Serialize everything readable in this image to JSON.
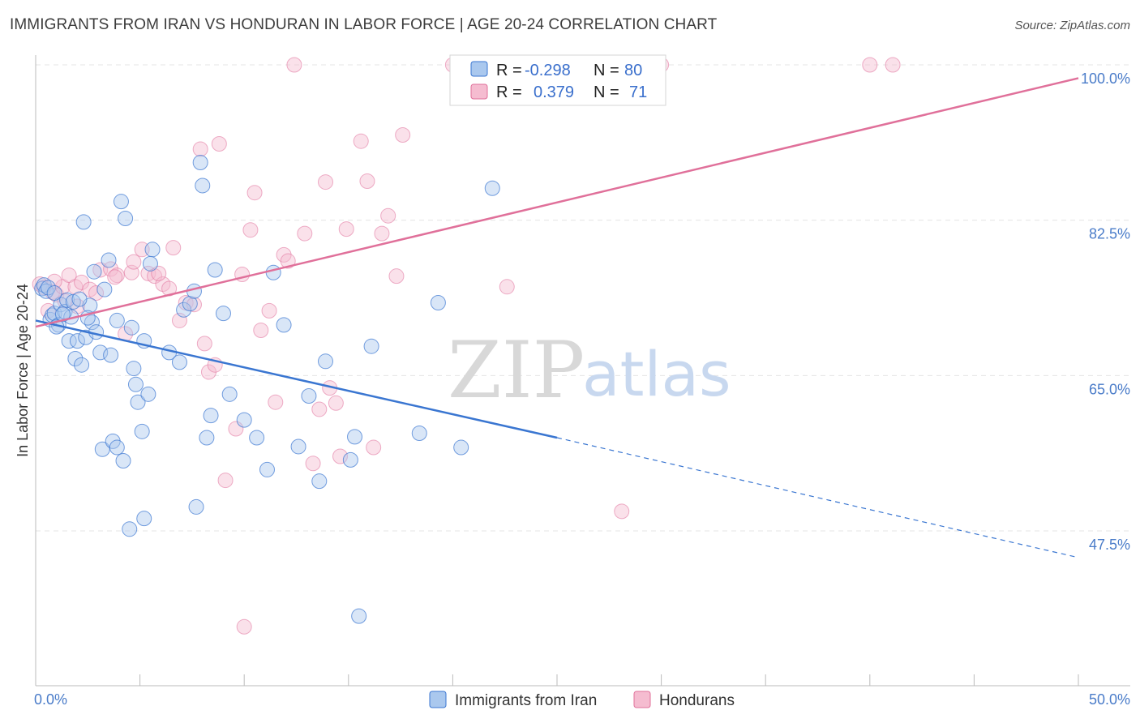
{
  "title": "IMMIGRANTS FROM IRAN VS HONDURAN IN LABOR FORCE | AGE 20-24 CORRELATION CHART",
  "source": "Source: ZipAtlas.com",
  "watermark": {
    "zip": "ZIP",
    "atlas": "atlas"
  },
  "colors": {
    "iran": "#3a76d1",
    "iran_fill": "#aac8ee",
    "honduran": "#e0709a",
    "honduran_fill": "#f5bcd0"
  },
  "legend": {
    "iran": {
      "r_label": "R =",
      "r_value": "-0.298",
      "n_label": "N =",
      "n_value": "80"
    },
    "honduran": {
      "r_label": "R =",
      "r_value": "0.379",
      "n_label": "N =",
      "n_value": "71"
    }
  },
  "chart_data": {
    "type": "scatter",
    "title": "IMMIGRANTS FROM IRAN VS HONDURAN IN LABOR FORCE | AGE 20-24 CORRELATION CHART",
    "xlabel": "",
    "ylabel": "In Labor Force | Age 20-24",
    "xlim": [
      0,
      50
    ],
    "ylim": [
      33,
      101.5
    ],
    "x_tick_labels": [
      "0.0%",
      "50.0%"
    ],
    "y_ticks": [
      47.5,
      65.0,
      82.5,
      100.0
    ],
    "y_tick_labels": [
      "47.5%",
      "65.0%",
      "82.5%",
      "100.0%"
    ],
    "grid": true,
    "legend_position": "top-center",
    "series": [
      {
        "name": "Immigrants from Iran",
        "color": "#3a76d1",
        "trend": {
          "x0": 0,
          "y0": 71.2,
          "x1": 25,
          "y1": 58.0,
          "dash_to_x": 50,
          "dash_to_y": 44.5
        },
        "points": [
          [
            0.3,
            74.8
          ],
          [
            0.4,
            75.2
          ],
          [
            0.5,
            74.5
          ],
          [
            0.6,
            74.9
          ],
          [
            0.7,
            71.3
          ],
          [
            0.8,
            71.8
          ],
          [
            0.9,
            72.0
          ],
          [
            1.1,
            70.7
          ],
          [
            1.2,
            73.0
          ],
          [
            1.4,
            72.2
          ],
          [
            1.5,
            73.5
          ],
          [
            1.6,
            68.9
          ],
          [
            1.7,
            71.6
          ],
          [
            1.8,
            73.3
          ],
          [
            1.9,
            66.9
          ],
          [
            2.0,
            68.9
          ],
          [
            2.2,
            66.2
          ],
          [
            2.4,
            69.3
          ],
          [
            2.6,
            72.9
          ],
          [
            2.7,
            71.0
          ],
          [
            2.9,
            69.9
          ],
          [
            3.1,
            67.6
          ],
          [
            3.3,
            74.7
          ],
          [
            3.5,
            78.0
          ],
          [
            3.6,
            67.3
          ],
          [
            3.9,
            71.2
          ],
          [
            4.1,
            84.6
          ],
          [
            4.3,
            82.7
          ],
          [
            4.6,
            70.4
          ],
          [
            4.7,
            65.8
          ],
          [
            4.8,
            64.0
          ],
          [
            4.9,
            62.0
          ],
          [
            5.2,
            68.9
          ],
          [
            5.4,
            62.9
          ],
          [
            5.6,
            79.2
          ],
          [
            5.5,
            77.6
          ],
          [
            6.4,
            67.6
          ],
          [
            6.9,
            66.5
          ],
          [
            7.1,
            72.4
          ],
          [
            7.4,
            73.1
          ],
          [
            7.6,
            74.5
          ],
          [
            7.9,
            89.0
          ],
          [
            8.0,
            86.4
          ],
          [
            8.6,
            76.9
          ],
          [
            8.2,
            58.0
          ],
          [
            8.4,
            60.5
          ],
          [
            9.0,
            72.0
          ],
          [
            9.3,
            62.9
          ],
          [
            10.0,
            60.0
          ],
          [
            10.6,
            58.0
          ],
          [
            11.1,
            54.4
          ],
          [
            11.4,
            76.6
          ],
          [
            11.9,
            70.7
          ],
          [
            12.6,
            57.0
          ],
          [
            13.1,
            62.7
          ],
          [
            13.6,
            53.1
          ],
          [
            13.9,
            66.6
          ],
          [
            15.1,
            55.5
          ],
          [
            15.3,
            58.1
          ],
          [
            16.1,
            68.3
          ],
          [
            18.4,
            58.5
          ],
          [
            19.3,
            73.2
          ],
          [
            20.4,
            56.9
          ],
          [
            21.9,
            86.1
          ],
          [
            7.7,
            50.2
          ],
          [
            4.5,
            47.7
          ],
          [
            5.2,
            48.9
          ],
          [
            15.5,
            37.9
          ],
          [
            3.2,
            56.7
          ],
          [
            3.7,
            57.6
          ],
          [
            3.9,
            56.9
          ],
          [
            4.2,
            55.4
          ],
          [
            5.1,
            58.7
          ],
          [
            2.3,
            82.3
          ],
          [
            2.8,
            76.7
          ],
          [
            1.0,
            70.5
          ],
          [
            2.1,
            73.6
          ],
          [
            2.5,
            71.5
          ],
          [
            1.3,
            71.9
          ],
          [
            0.9,
            74.3
          ]
        ]
      },
      {
        "name": "Hondurans",
        "color": "#e0709a",
        "trend": {
          "x0": 0,
          "y0": 70.5,
          "x1": 50,
          "y1": 98.5
        },
        "points": [
          [
            0.2,
            75.3
          ],
          [
            0.4,
            74.9
          ],
          [
            0.6,
            72.3
          ],
          [
            0.8,
            74.4
          ],
          [
            1.0,
            74.1
          ],
          [
            1.3,
            75.0
          ],
          [
            1.6,
            76.3
          ],
          [
            1.9,
            75.0
          ],
          [
            2.2,
            75.5
          ],
          [
            2.6,
            74.7
          ],
          [
            2.9,
            74.3
          ],
          [
            3.1,
            76.9
          ],
          [
            3.6,
            77.0
          ],
          [
            3.9,
            76.3
          ],
          [
            4.3,
            69.7
          ],
          [
            4.6,
            76.6
          ],
          [
            5.1,
            79.2
          ],
          [
            5.4,
            76.5
          ],
          [
            5.7,
            76.2
          ],
          [
            6.1,
            75.3
          ],
          [
            6.4,
            74.8
          ],
          [
            6.6,
            79.4
          ],
          [
            6.9,
            71.2
          ],
          [
            7.2,
            73.2
          ],
          [
            7.6,
            73.0
          ],
          [
            7.9,
            90.5
          ],
          [
            8.1,
            68.6
          ],
          [
            8.3,
            65.4
          ],
          [
            8.6,
            66.2
          ],
          [
            8.8,
            91.1
          ],
          [
            9.1,
            53.2
          ],
          [
            9.6,
            59.0
          ],
          [
            9.9,
            76.4
          ],
          [
            10.3,
            81.4
          ],
          [
            10.5,
            85.6
          ],
          [
            10.8,
            70.1
          ],
          [
            11.2,
            72.3
          ],
          [
            11.5,
            62.0
          ],
          [
            11.9,
            78.6
          ],
          [
            12.1,
            77.9
          ],
          [
            12.4,
            100.0
          ],
          [
            12.9,
            81.0
          ],
          [
            13.3,
            55.1
          ],
          [
            13.6,
            61.2
          ],
          [
            13.9,
            86.8
          ],
          [
            14.1,
            63.6
          ],
          [
            14.4,
            61.9
          ],
          [
            14.6,
            55.9
          ],
          [
            14.9,
            81.5
          ],
          [
            15.6,
            91.4
          ],
          [
            15.9,
            86.9
          ],
          [
            16.2,
            56.9
          ],
          [
            16.6,
            81.0
          ],
          [
            16.9,
            83.0
          ],
          [
            17.3,
            76.2
          ],
          [
            17.6,
            92.1
          ],
          [
            20.0,
            100.0
          ],
          [
            22.6,
            75.0
          ],
          [
            23.8,
            100.0
          ],
          [
            24.0,
            100.0
          ],
          [
            28.1,
            49.7
          ],
          [
            30.0,
            100.0
          ],
          [
            40.0,
            100.0
          ],
          [
            41.1,
            100.0
          ],
          [
            10.0,
            36.7
          ],
          [
            3.8,
            76.1
          ],
          [
            4.7,
            77.8
          ],
          [
            5.9,
            76.5
          ],
          [
            2.0,
            72.8
          ],
          [
            1.4,
            73.4
          ],
          [
            0.9,
            75.6
          ]
        ]
      }
    ]
  },
  "bottom_legend": {
    "iran": "Immigrants from Iran",
    "honduran": "Hondurans"
  }
}
